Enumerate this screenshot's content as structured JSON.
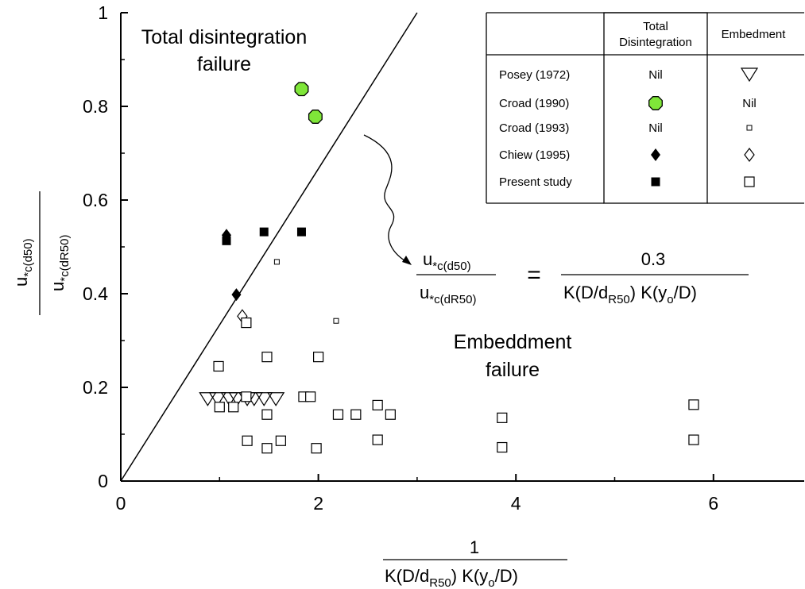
{
  "chart_data": {
    "type": "scatter",
    "xlim": [
      0,
      7
    ],
    "ylim": [
      0,
      1
    ],
    "x_ticks": [
      "0",
      "2",
      "4",
      "6"
    ],
    "y_ticks": [
      "0",
      "0.2",
      "0.4",
      "0.6",
      "0.8",
      "1"
    ],
    "grid": false,
    "legend_position": "top-right",
    "xlabel": {
      "numerator": "1",
      "denominator": "K(D/d",
      "denominator_sub": "R50",
      "denominator_mid": ")  K(y",
      "denominator_sub2": "o",
      "denominator_end": "/D)"
    },
    "ylabel": {
      "numerator": "u",
      "numerator_sub": "*c(d50)",
      "denominator": "u",
      "denominator_sub": "*c(dR50)"
    },
    "boundary_line": {
      "slope": 0.3333,
      "from": [
        0,
        0
      ],
      "to": [
        3.0,
        1.0
      ]
    },
    "region_labels": [
      {
        "line1": "Total disintegration",
        "line2": "failure"
      },
      {
        "line1": "Embeddment",
        "line2": "failure"
      }
    ],
    "equation": {
      "lhs_num": "u",
      "lhs_num_sub": "*c(d50)",
      "lhs_den": "u",
      "lhs_den_sub": "*c(dR50)",
      "equals": "=",
      "rhs_num": "0.3",
      "rhs_den_a": "K(D/d",
      "rhs_den_sub": "R50",
      "rhs_den_b": ")  K(y",
      "rhs_den_sub2": "o",
      "rhs_den_c": "/D)"
    },
    "legend": {
      "col_headers": [
        "Total\nDisintegration",
        "Embedment"
      ],
      "rows": [
        {
          "name": "Posey (1972)",
          "total": "Nil",
          "embed": ""
        },
        {
          "name": "Croad (1990)",
          "total": "",
          "embed": "Nil"
        },
        {
          "name": "Croad (1993)",
          "total": "Nil",
          "embed": ""
        },
        {
          "name": "Chiew (1995)",
          "total": "",
          "embed": ""
        },
        {
          "name": "Present study",
          "total": "",
          "embed": ""
        }
      ]
    },
    "series": [
      {
        "name": "Posey (1972)",
        "failure": "Embedment",
        "marker": "triangle-down-open",
        "points": [
          [
            0.88,
            0.175
          ],
          [
            0.98,
            0.175
          ],
          [
            1.1,
            0.175
          ],
          [
            1.18,
            0.175
          ],
          [
            1.28,
            0.175
          ],
          [
            1.35,
            0.175
          ],
          [
            1.45,
            0.175
          ],
          [
            1.57,
            0.175
          ]
        ]
      },
      {
        "name": "Croad (1990)",
        "failure": "Total Disintegration",
        "marker": "octagon-green",
        "points": [
          [
            1.83,
            0.837
          ],
          [
            1.97,
            0.778
          ]
        ]
      },
      {
        "name": "Croad (1993)",
        "failure": "Embedment",
        "marker": "small-square-open",
        "points": [
          [
            1.58,
            0.468
          ],
          [
            2.18,
            0.342
          ]
        ]
      },
      {
        "name": "Chiew (1995)",
        "failure": "Total Disintegration",
        "marker": "diamond-filled",
        "points": [
          [
            1.07,
            0.525
          ],
          [
            1.17,
            0.398
          ]
        ]
      },
      {
        "name": "Chiew (1995)",
        "failure": "Embedment",
        "marker": "diamond-open",
        "points": [
          [
            1.23,
            0.352
          ]
        ]
      },
      {
        "name": "Present study",
        "failure": "Total Disintegration",
        "marker": "square-filled",
        "points": [
          [
            1.07,
            0.513
          ],
          [
            1.45,
            0.532
          ],
          [
            1.83,
            0.532
          ]
        ]
      },
      {
        "name": "Present study",
        "failure": "Embedment",
        "marker": "square-open",
        "points": [
          [
            0.99,
            0.245
          ],
          [
            1.27,
            0.338
          ],
          [
            1.48,
            0.265
          ],
          [
            2.0,
            0.265
          ],
          [
            1.0,
            0.158
          ],
          [
            1.14,
            0.158
          ],
          [
            1.27,
            0.18
          ],
          [
            1.48,
            0.142
          ],
          [
            1.85,
            0.18
          ],
          [
            1.92,
            0.18
          ],
          [
            2.2,
            0.142
          ],
          [
            2.38,
            0.142
          ],
          [
            2.6,
            0.162
          ],
          [
            2.73,
            0.142
          ],
          [
            1.28,
            0.086
          ],
          [
            1.48,
            0.07
          ],
          [
            1.62,
            0.086
          ],
          [
            1.98,
            0.07
          ],
          [
            2.6,
            0.088
          ],
          [
            3.86,
            0.135
          ],
          [
            3.86,
            0.072
          ],
          [
            5.8,
            0.163
          ],
          [
            5.8,
            0.088
          ]
        ]
      }
    ],
    "colors": {
      "croad_1990_fill": "#7fe639",
      "axis": "#000000"
    }
  }
}
